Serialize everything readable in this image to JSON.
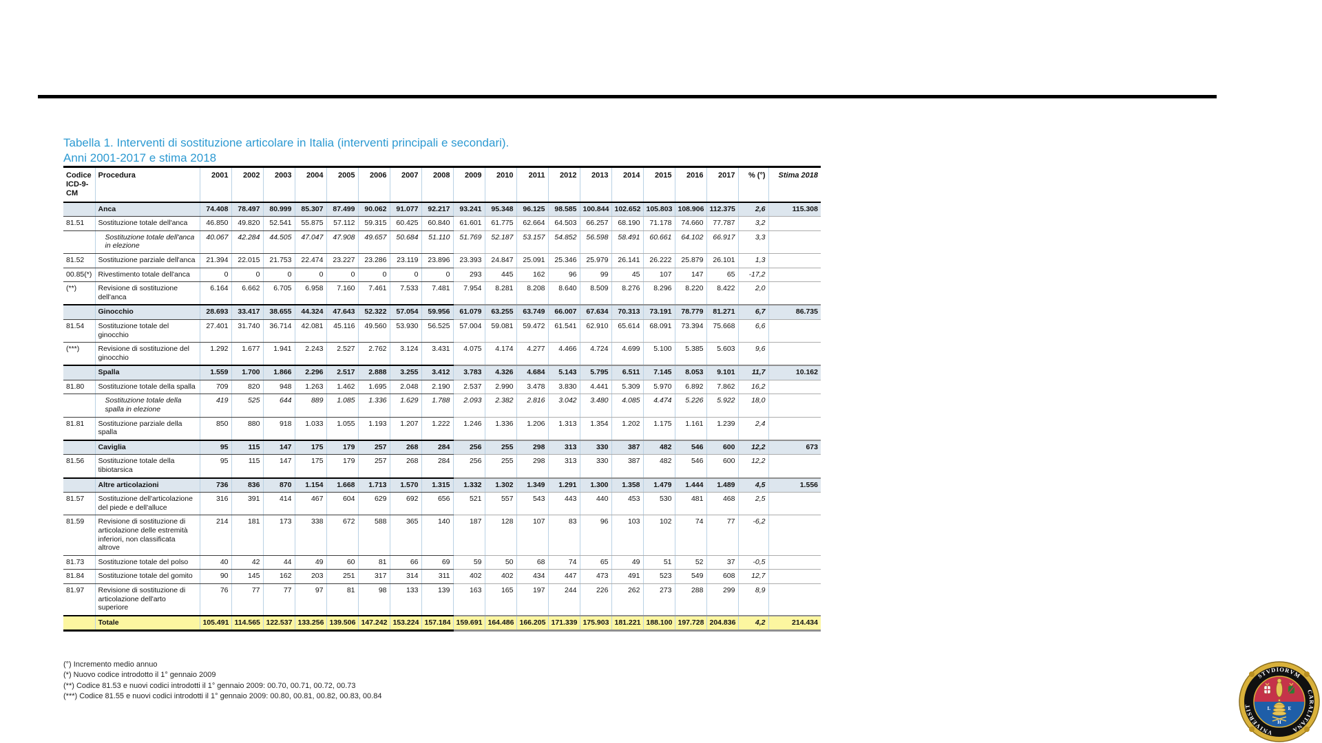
{
  "document": {
    "title_line1": "Tabella 1. Interventi di sostituzione articolare in Italia (interventi principali e secondari).",
    "title_line2": "Anni 2001-2017 e stima 2018",
    "title_color": "#2d9ad2"
  },
  "table": {
    "headers": {
      "code": "Codice\nICD-9-CM",
      "procedure": "Procedura",
      "years": [
        "2001",
        "2002",
        "2003",
        "2004",
        "2005",
        "2006",
        "2007",
        "2008",
        "2009",
        "2010",
        "2011",
        "2012",
        "2013",
        "2014",
        "2015",
        "2016",
        "2017"
      ],
      "pct": "% (°)",
      "stima": "Stima 2018"
    },
    "rows": [
      {
        "type": "section",
        "code": "",
        "label": "Anca",
        "values": [
          "74.408",
          "78.497",
          "80.999",
          "85.307",
          "87.499",
          "90.062",
          "91.077",
          "92.217",
          "93.241",
          "95.348",
          "96.125",
          "98.585",
          "100.844",
          "102.652",
          "105.803",
          "108.906",
          "112.375"
        ],
        "pct": "2,6",
        "stima": "115.308"
      },
      {
        "type": "data",
        "code": "81.51",
        "label": "Sostituzione totale dell'anca",
        "values": [
          "46.850",
          "49.820",
          "52.541",
          "55.875",
          "57.112",
          "59.315",
          "60.425",
          "60.840",
          "61.601",
          "61.775",
          "62.664",
          "64.503",
          "66.257",
          "68.190",
          "71.178",
          "74.660",
          "77.787"
        ],
        "pct": "3,2",
        "stima": ""
      },
      {
        "type": "elezione",
        "code": "",
        "label": "Sostituzione totale dell'anca in elezione",
        "values": [
          "40.067",
          "42.284",
          "44.505",
          "47.047",
          "47.908",
          "49.657",
          "50.684",
          "51.110",
          "51.769",
          "52.187",
          "53.157",
          "54.852",
          "56.598",
          "58.491",
          "60.661",
          "64.102",
          "66.917"
        ],
        "pct": "3,3",
        "stima": ""
      },
      {
        "type": "data",
        "code": "81.52",
        "label": "Sostituzione parziale dell'anca",
        "values": [
          "21.394",
          "22.015",
          "21.753",
          "22.474",
          "23.227",
          "23.286",
          "23.119",
          "23.896",
          "23.393",
          "24.847",
          "25.091",
          "25.346",
          "25.979",
          "26.141",
          "26.222",
          "25.879",
          "26.101"
        ],
        "pct": "1,3",
        "stima": ""
      },
      {
        "type": "data",
        "code": "00.85(*)",
        "label": "Rivestimento totale dell'anca",
        "values": [
          "0",
          "0",
          "0",
          "0",
          "0",
          "0",
          "0",
          "0",
          "293",
          "445",
          "162",
          "96",
          "99",
          "45",
          "107",
          "147",
          "65"
        ],
        "pct": "-17,2",
        "stima": ""
      },
      {
        "type": "data",
        "code": "(**)",
        "label": "Revisione di sostituzione dell'anca",
        "values": [
          "6.164",
          "6.662",
          "6.705",
          "6.958",
          "7.160",
          "7.461",
          "7.533",
          "7.481",
          "7.954",
          "8.281",
          "8.208",
          "8.640",
          "8.509",
          "8.276",
          "8.296",
          "8.220",
          "8.422"
        ],
        "pct": "2,0",
        "stima": ""
      },
      {
        "type": "section",
        "code": "",
        "label": "Ginocchio",
        "values": [
          "28.693",
          "33.417",
          "38.655",
          "44.324",
          "47.643",
          "52.322",
          "57.054",
          "59.956",
          "61.079",
          "63.255",
          "63.749",
          "66.007",
          "67.634",
          "70.313",
          "73.191",
          "78.779",
          "81.271"
        ],
        "pct": "6,7",
        "stima": "86.735"
      },
      {
        "type": "data",
        "code": "81.54",
        "label": "Sostituzione totale del ginocchio",
        "values": [
          "27.401",
          "31.740",
          "36.714",
          "42.081",
          "45.116",
          "49.560",
          "53.930",
          "56.525",
          "57.004",
          "59.081",
          "59.472",
          "61.541",
          "62.910",
          "65.614",
          "68.091",
          "73.394",
          "75.668"
        ],
        "pct": "6,6",
        "stima": ""
      },
      {
        "type": "data",
        "code": "(***)",
        "label": "Revisione di sostituzione del ginocchio",
        "values": [
          "1.292",
          "1.677",
          "1.941",
          "2.243",
          "2.527",
          "2.762",
          "3.124",
          "3.431",
          "4.075",
          "4.174",
          "4.277",
          "4.466",
          "4.724",
          "4.699",
          "5.100",
          "5.385",
          "5.603"
        ],
        "pct": "9,6",
        "stima": ""
      },
      {
        "type": "section",
        "code": "",
        "label": "Spalla",
        "values": [
          "1.559",
          "1.700",
          "1.866",
          "2.296",
          "2.517",
          "2.888",
          "3.255",
          "3.412",
          "3.783",
          "4.326",
          "4.684",
          "5.143",
          "5.795",
          "6.511",
          "7.145",
          "8.053",
          "9.101"
        ],
        "pct": "11,7",
        "stima": "10.162"
      },
      {
        "type": "data",
        "code": "81.80",
        "label": "Sostituzione totale della spalla",
        "values": [
          "709",
          "820",
          "948",
          "1.263",
          "1.462",
          "1.695",
          "2.048",
          "2.190",
          "2.537",
          "2.990",
          "3.478",
          "3.830",
          "4.441",
          "5.309",
          "5.970",
          "6.892",
          "7.862"
        ],
        "pct": "16,2",
        "stima": ""
      },
      {
        "type": "elezione",
        "code": "",
        "label": "Sostituzione totale della spalla in elezione",
        "values": [
          "419",
          "525",
          "644",
          "889",
          "1.085",
          "1.336",
          "1.629",
          "1.788",
          "2.093",
          "2.382",
          "2.816",
          "3.042",
          "3.480",
          "4.085",
          "4.474",
          "5.226",
          "5.922"
        ],
        "pct": "18,0",
        "stima": ""
      },
      {
        "type": "data",
        "code": "81.81",
        "label": "Sostituzione parziale della spalla",
        "values": [
          "850",
          "880",
          "918",
          "1.033",
          "1.055",
          "1.193",
          "1.207",
          "1.222",
          "1.246",
          "1.336",
          "1.206",
          "1.313",
          "1.354",
          "1.202",
          "1.175",
          "1.161",
          "1.239"
        ],
        "pct": "2,4",
        "stima": ""
      },
      {
        "type": "section",
        "code": "",
        "label": "Caviglia",
        "values": [
          "95",
          "115",
          "147",
          "175",
          "179",
          "257",
          "268",
          "284",
          "256",
          "255",
          "298",
          "313",
          "330",
          "387",
          "482",
          "546",
          "600"
        ],
        "pct": "12,2",
        "stima": "673"
      },
      {
        "type": "data",
        "code": "81.56",
        "label": "Sostituzione totale della tibiotarsica",
        "values": [
          "95",
          "115",
          "147",
          "175",
          "179",
          "257",
          "268",
          "284",
          "256",
          "255",
          "298",
          "313",
          "330",
          "387",
          "482",
          "546",
          "600"
        ],
        "pct": "12,2",
        "stima": ""
      },
      {
        "type": "section",
        "code": "",
        "label": "Altre articolazioni",
        "values": [
          "736",
          "836",
          "870",
          "1.154",
          "1.668",
          "1.713",
          "1.570",
          "1.315",
          "1.332",
          "1.302",
          "1.349",
          "1.291",
          "1.300",
          "1.358",
          "1.479",
          "1.444",
          "1.489"
        ],
        "pct": "4,5",
        "stima": "1.556"
      },
      {
        "type": "data",
        "code": "81.57",
        "label": "Sostituzione dell'articolazione del piede e dell'alluce",
        "values": [
          "316",
          "391",
          "414",
          "467",
          "604",
          "629",
          "692",
          "656",
          "521",
          "557",
          "543",
          "443",
          "440",
          "453",
          "530",
          "481",
          "468"
        ],
        "pct": "2,5",
        "stima": ""
      },
      {
        "type": "data",
        "code": "81.59",
        "label": "Revisione di sostituzione di articolazione delle estremità inferiori, non classificata altrove",
        "values": [
          "214",
          "181",
          "173",
          "338",
          "672",
          "588",
          "365",
          "140",
          "187",
          "128",
          "107",
          "83",
          "96",
          "103",
          "102",
          "74",
          "77"
        ],
        "pct": "-6,2",
        "stima": ""
      },
      {
        "type": "data",
        "code": "81.73",
        "label": "Sostituzione totale del polso",
        "values": [
          "40",
          "42",
          "44",
          "49",
          "60",
          "81",
          "66",
          "69",
          "59",
          "50",
          "68",
          "74",
          "65",
          "49",
          "51",
          "52",
          "37"
        ],
        "pct": "-0,5",
        "stima": ""
      },
      {
        "type": "data",
        "code": "81.84",
        "label": "Sostituzione totale del gomito",
        "values": [
          "90",
          "145",
          "162",
          "203",
          "251",
          "317",
          "314",
          "311",
          "402",
          "402",
          "434",
          "447",
          "473",
          "491",
          "523",
          "549",
          "608"
        ],
        "pct": "12,7",
        "stima": ""
      },
      {
        "type": "data",
        "code": "81.97",
        "label": "Revisione di sostituzione di articolazione dell'arto superiore",
        "values": [
          "76",
          "77",
          "77",
          "97",
          "81",
          "98",
          "133",
          "139",
          "163",
          "165",
          "197",
          "244",
          "226",
          "262",
          "273",
          "288",
          "299"
        ],
        "pct": "8,9",
        "stima": ""
      },
      {
        "type": "total",
        "code": "",
        "label": "Totale",
        "values": [
          "105.491",
          "114.565",
          "122.537",
          "133.256",
          "139.506",
          "147.242",
          "153.224",
          "157.184",
          "159.691",
          "164.486",
          "166.205",
          "171.339",
          "175.903",
          "181.221",
          "188.100",
          "197.728",
          "204.836"
        ],
        "pct": "4,2",
        "stima": "214.434"
      }
    ]
  },
  "footnotes": [
    "(°) Incremento medio annuo",
    "(*) Nuovo codice introdotto il 1° gennaio 2009",
    "(**) Codice 81.53 e nuovi codici introdotti il 1° gennaio 2009: 00.70, 00.71, 00.72, 00.73",
    "(***) Codice 81.55 e nuovi codici introdotti il 1° gennaio 2009: 00.80, 00.81, 00.82, 00.83, 00.84"
  ],
  "logo": {
    "ring_text_top": "STVDIORVM",
    "ring_text_right": "CARALITANA",
    "ring_text_left": "VNIVERSITAS",
    "letters": [
      "L",
      "H",
      "E"
    ],
    "gold": "#d9b13b",
    "red": "#c5334a",
    "blue": "#1e5ea8"
  }
}
